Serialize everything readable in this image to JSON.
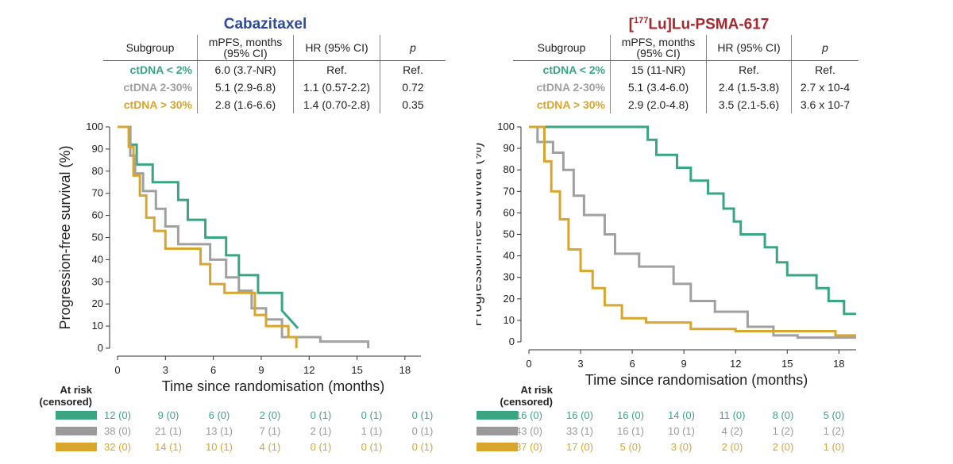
{
  "panels": [
    {
      "title": "Cabazitaxel",
      "title_color": "#2d4a9e",
      "table": {
        "headers": [
          "Subgroup",
          "mPFS, months (95% CI)",
          "HR (95% CI)",
          "p"
        ],
        "rows": [
          {
            "group": "ctDNA < 2%",
            "mpfs": "6.0 (3.7-NR)",
            "hr": "Ref.",
            "p": "Ref."
          },
          {
            "group": "ctDNA 2-30%",
            "mpfs": "5.1 (2.9-6.8)",
            "hr": "1.1 (0.57-2.2)",
            "p": "0.72"
          },
          {
            "group": "ctDNA > 30%",
            "mpfs": "2.8 (1.6-6.6)",
            "hr": "1.4 (0.70-2.8)",
            "p": "0.35"
          }
        ]
      },
      "at_risk": {
        "label": "At risk\n(censored)",
        "rows": [
          [
            "12 (0)",
            "9 (0)",
            "6 (0)",
            "2 (0)",
            "0 (1)",
            "0 (1)",
            "0 (1)"
          ],
          [
            "38 (0)",
            "21 (1)",
            "13 (1)",
            "7 (1)",
            "2 (1)",
            "1 (1)",
            "0 (1)"
          ],
          [
            "32 (0)",
            "14 (1)",
            "10 (1)",
            "4 (1)",
            "0 (1)",
            "0 (1)",
            "0 (1)"
          ]
        ]
      }
    },
    {
      "title": "[177Lu]Lu-PSMA-617",
      "title_parts": {
        "pre": "[",
        "sup": "177",
        "post": "Lu]Lu-PSMA-617"
      },
      "title_color": "#a7272d",
      "table": {
        "headers": [
          "Subgroup",
          "mPFS, months (95% CI)",
          "HR (95% CI)",
          "p"
        ],
        "rows": [
          {
            "group": "ctDNA < 2%",
            "mpfs": "15 (11-NR)",
            "hr": "Ref.",
            "p": "Ref."
          },
          {
            "group": "ctDNA 2-30%",
            "mpfs": "5.1 (3.4-6.0)",
            "hr": "2.4 (1.5-3.8)",
            "p": "2.7 x 10-4"
          },
          {
            "group": "ctDNA > 30%",
            "mpfs": "2.9 (2.0-4.8)",
            "hr": "3.5 (2.1-5.6)",
            "p": "3.6 x 10-7"
          }
        ]
      },
      "at_risk": {
        "label": "At risk\n(censored)",
        "rows": [
          [
            "16 (0)",
            "16 (0)",
            "16 (0)",
            "14 (0)",
            "11 (0)",
            "8 (0)",
            "5 (0)"
          ],
          [
            "43 (0)",
            "33 (1)",
            "16 (1)",
            "10 (1)",
            "4 (2)",
            "1 (2)",
            "1 (2)"
          ],
          [
            "37 (0)",
            "17 (0)",
            "5 (0)",
            "3 (0)",
            "2 (0)",
            "2 (0)",
            "1 (0)"
          ]
        ]
      }
    }
  ],
  "chart_data": [
    {
      "type": "line",
      "title": "Cabazitaxel",
      "xlabel": "Time since randomisation (months)",
      "ylabel": "Progression-free survival (%)",
      "xlim": [
        0,
        19
      ],
      "ylim": [
        0,
        100
      ],
      "xticks": [
        0,
        3,
        6,
        9,
        12,
        15,
        18
      ],
      "yticks": [
        0,
        10,
        20,
        30,
        40,
        50,
        60,
        70,
        80,
        90,
        100
      ],
      "series": [
        {
          "name": "ctDNA < 2%",
          "color": "#3aa581",
          "x": [
            0,
            0.8,
            0.8,
            1.2,
            1.2,
            2.2,
            2.2,
            3.8,
            3.8,
            4.4,
            4.4,
            5.5,
            5.5,
            6.8,
            6.8,
            7.6,
            7.6,
            8.8,
            8.8,
            10.3,
            10.3,
            11.3
          ],
          "y": [
            100,
            100,
            92,
            92,
            83,
            83,
            75,
            75,
            67,
            67,
            58,
            58,
            50,
            50,
            42,
            42,
            33,
            33,
            25,
            25,
            17,
            9
          ]
        },
        {
          "name": "ctDNA 2-30%",
          "color": "#a0a0a0",
          "x": [
            0,
            0.8,
            0.8,
            1.1,
            1.1,
            1.6,
            1.6,
            2.4,
            2.4,
            3.0,
            3.0,
            3.8,
            3.8,
            5.8,
            5.8,
            6.8,
            6.8,
            7.6,
            7.6,
            8.4,
            8.4,
            9.3,
            9.3,
            10.3,
            10.3,
            12.7,
            12.7,
            15.7,
            15.7
          ],
          "y": [
            100,
            100,
            87,
            87,
            79,
            79,
            71,
            71,
            63,
            63,
            55,
            55,
            47,
            47,
            40,
            40,
            32,
            32,
            26,
            26,
            18,
            18,
            13,
            13,
            5,
            5,
            3,
            3,
            0
          ]
        },
        {
          "name": "ctDNA > 30%",
          "color": "#d8a52d",
          "x": [
            0,
            0.7,
            0.7,
            1.0,
            1.0,
            1.4,
            1.4,
            1.8,
            1.8,
            2.3,
            2.3,
            3.0,
            3.0,
            5.2,
            5.2,
            5.8,
            5.8,
            6.7,
            6.7,
            8.6,
            8.6,
            9.3,
            9.3,
            10.7,
            10.7,
            11.2,
            11.2
          ],
          "y": [
            100,
            100,
            91,
            91,
            78,
            78,
            69,
            69,
            59,
            59,
            53,
            53,
            45,
            45,
            38,
            38,
            29,
            29,
            25,
            25,
            15,
            15,
            10,
            10,
            5,
            5,
            0
          ]
        }
      ]
    },
    {
      "type": "line",
      "title": "[177Lu]Lu-PSMA-617",
      "xlabel": "Time since randomisation (months)",
      "ylabel": "Progression-free survival (%)",
      "xlim": [
        0,
        19
      ],
      "ylim": [
        0,
        100
      ],
      "xticks": [
        0,
        3,
        6,
        9,
        12,
        15,
        18
      ],
      "yticks": [
        0,
        10,
        20,
        30,
        40,
        50,
        60,
        70,
        80,
        90,
        100
      ],
      "series": [
        {
          "name": "ctDNA < 2%",
          "color": "#3aa581",
          "x": [
            0,
            6.9,
            6.9,
            7.4,
            7.4,
            8.6,
            8.6,
            9.4,
            9.4,
            10.4,
            10.4,
            11.3,
            11.3,
            11.9,
            11.9,
            12.3,
            12.3,
            13.7,
            13.7,
            14.4,
            14.4,
            15.0,
            15.0,
            16.7,
            16.7,
            17.4,
            17.4,
            18.3,
            18.3,
            19.0
          ],
          "y": [
            100,
            100,
            94,
            94,
            87,
            87,
            81,
            81,
            75,
            75,
            69,
            69,
            62,
            62,
            56,
            56,
            50,
            50,
            44,
            44,
            37,
            37,
            31,
            31,
            25,
            25,
            19,
            19,
            13,
            13
          ]
        },
        {
          "name": "ctDNA 2-30%",
          "color": "#a0a0a0",
          "x": [
            0,
            0.5,
            0.5,
            1.4,
            1.4,
            2.0,
            2.0,
            2.6,
            2.6,
            3.2,
            3.2,
            4.4,
            4.4,
            5.0,
            5.0,
            6.4,
            6.4,
            8.4,
            8.4,
            9.4,
            9.4,
            10.8,
            10.8,
            12.7,
            12.7,
            14.2,
            14.2,
            15.6,
            15.6,
            18.0,
            18.0,
            19.0
          ],
          "y": [
            100,
            100,
            93,
            93,
            88,
            88,
            80,
            80,
            68,
            68,
            59,
            59,
            50,
            50,
            41,
            41,
            35,
            35,
            27,
            27,
            19,
            19,
            14,
            14,
            7,
            7,
            3,
            3,
            2,
            2,
            2,
            2
          ]
        },
        {
          "name": "ctDNA > 30%",
          "color": "#d8a52d",
          "x": [
            0,
            0.9,
            0.9,
            1.3,
            1.3,
            1.8,
            1.8,
            2.3,
            2.3,
            3.0,
            3.0,
            3.7,
            3.7,
            4.4,
            4.4,
            5.4,
            5.4,
            6.8,
            6.8,
            9.4,
            9.4,
            12.0,
            12.0,
            17.8,
            17.8,
            19.0
          ],
          "y": [
            100,
            100,
            84,
            84,
            70,
            70,
            57,
            57,
            43,
            43,
            33,
            33,
            25,
            25,
            17,
            17,
            11,
            11,
            9,
            9,
            6,
            6,
            5,
            5,
            3,
            3
          ]
        }
      ]
    }
  ]
}
